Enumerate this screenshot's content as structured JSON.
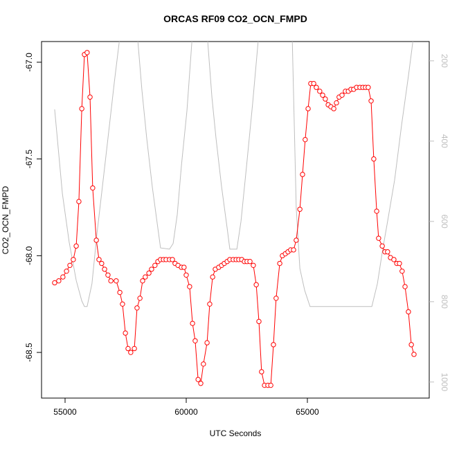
{
  "chart_data": {
    "type": "line",
    "title": "ORCAS RF09 CO2_OCN_FMPD",
    "x_label": "UTC Seconds",
    "y_label": "CO2_OCN_FMPD",
    "xlim": [
      54029,
      70029
    ],
    "ylim": [
      -68.736,
      -66.893
    ],
    "y2lim": [
      1040,
      152
    ],
    "xticks": [
      55000,
      60000,
      65000
    ],
    "yticks": [
      {
        "value": -67,
        "label": "-67.0"
      },
      -67.5,
      {
        "value": -68,
        "label": "-68.0"
      },
      -68.5
    ],
    "y2ticks": [
      200,
      400,
      600,
      800,
      1000
    ],
    "y2_color": "#bebebe",
    "series": [
      {
        "color": "#ff0000",
        "markers": true,
        "x": [
          54570,
          54740,
          54910,
          55060,
          55200,
          55340,
          55460,
          55570,
          55690,
          55800,
          55910,
          56030,
          56140,
          56290,
          56400,
          56510,
          56630,
          56770,
          56890,
          57110,
          57260,
          57370,
          57490,
          57600,
          57710,
          57860,
          57970,
          58090,
          58200,
          58310,
          58460,
          58570,
          58710,
          58830,
          58940,
          59060,
          59170,
          59310,
          59430,
          59540,
          59660,
          59800,
          59910,
          60000,
          60140,
          60260,
          60370,
          60490,
          60600,
          60710,
          60860,
          60970,
          61090,
          61200,
          61340,
          61460,
          61570,
          61690,
          61800,
          61940,
          62060,
          62170,
          62290,
          62400,
          62510,
          62630,
          62770,
          62890,
          63000,
          63110,
          63230,
          63370,
          63490,
          63600,
          63710,
          63860,
          63970,
          64090,
          64200,
          64310,
          64430,
          64540,
          64690,
          64800,
          64910,
          65030,
          65140,
          65260,
          65370,
          65510,
          65630,
          65740,
          65860,
          65970,
          66090,
          66200,
          66310,
          66430,
          66570,
          66690,
          66800,
          66910,
          67030,
          67170,
          67290,
          67400,
          67510,
          67630,
          67740,
          67860,
          67940,
          68090,
          68200,
          68310,
          68430,
          68570,
          68690,
          68800,
          68910,
          69030,
          69170,
          69290,
          69400
        ],
        "values": [
          -68.14,
          -68.13,
          -68.11,
          -68.08,
          -68.05,
          -68.02,
          -67.95,
          -67.72,
          -67.24,
          -66.96,
          -66.95,
          -67.18,
          -67.65,
          -67.92,
          -68.02,
          -68.04,
          -68.07,
          -68.1,
          -68.13,
          -68.13,
          -68.19,
          -68.25,
          -68.4,
          -68.48,
          -68.5,
          -68.48,
          -68.27,
          -68.22,
          -68.13,
          -68.11,
          -68.09,
          -68.07,
          -68.05,
          -68.03,
          -68.02,
          -68.02,
          -68.02,
          -68.02,
          -68.02,
          -68.04,
          -68.05,
          -68.06,
          -68.06,
          -68.1,
          -68.16,
          -68.35,
          -68.44,
          -68.64,
          -68.66,
          -68.56,
          -68.45,
          -68.25,
          -68.11,
          -68.07,
          -68.06,
          -68.05,
          -68.04,
          -68.03,
          -68.02,
          -68.02,
          -68.02,
          -68.02,
          -68.02,
          -68.03,
          -68.03,
          -68.03,
          -68.05,
          -68.15,
          -68.34,
          -68.6,
          -68.67,
          -68.67,
          -68.67,
          -68.46,
          -68.22,
          -68.04,
          -68,
          -67.99,
          -67.98,
          -67.97,
          -67.97,
          -67.92,
          -67.76,
          -67.58,
          -67.4,
          -67.24,
          -67.11,
          -67.11,
          -67.13,
          -67.15,
          -67.17,
          -67.19,
          -67.22,
          -67.23,
          -67.24,
          -67.21,
          -67.18,
          -67.17,
          -67.15,
          -67.15,
          -67.14,
          -67.14,
          -67.13,
          -67.13,
          -67.13,
          -67.13,
          -67.13,
          -67.2,
          -67.5,
          -67.77,
          -67.91,
          -67.95,
          -67.98,
          -67.98,
          -68.01,
          -68.02,
          -68.04,
          -68.04,
          -68.08,
          -68.16,
          -68.29,
          -68.46,
          -68.51
        ]
      },
      {
        "color": "#bebebe",
        "axis": "y2",
        "x": [
          54570,
          54890,
          55170,
          55460,
          55690,
          55800,
          55910,
          56110,
          56310,
          56540,
          56770,
          57030,
          57290,
          57970,
          58170,
          58370,
          58600,
          58830,
          58940,
          59310,
          59460,
          59630,
          59800,
          60030,
          60260,
          60860,
          61060,
          61230,
          61460,
          61690,
          61800,
          62090,
          62260,
          62490,
          62740,
          63000,
          64370,
          64540,
          64690,
          64890,
          65110,
          67660,
          67890,
          68110,
          68310,
          68600,
          68890,
          69170,
          69400
        ],
        "values": [
          321,
          531,
          652,
          747,
          798,
          812,
          812,
          755,
          634,
          514,
          393,
          255,
          126,
          126,
          272,
          393,
          514,
          617,
          666,
          669,
          655,
          583,
          462,
          324,
          130,
          130,
          290,
          393,
          514,
          617,
          669,
          669,
          600,
          462,
          307,
          130,
          130,
          566,
          717,
          772,
          812,
          812,
          755,
          669,
          600,
          497,
          359,
          238,
          130
        ]
      }
    ]
  }
}
